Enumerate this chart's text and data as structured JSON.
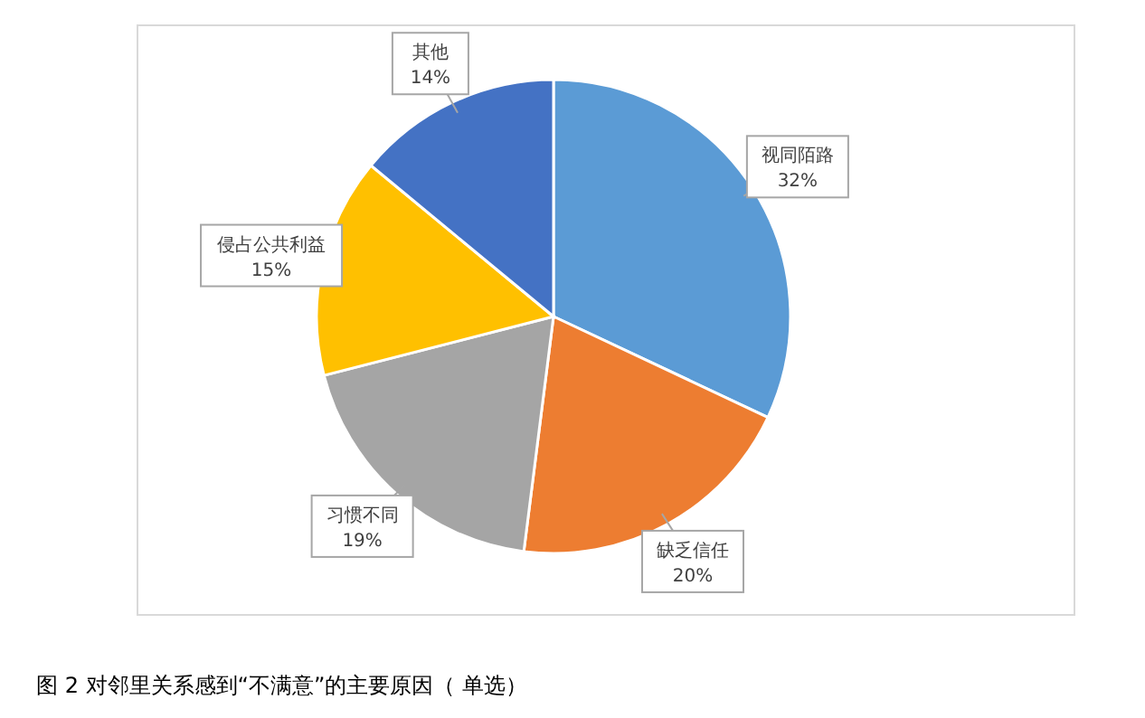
{
  "chart_data": {
    "type": "pie",
    "title": "图 2 对邻里关系感到“不满意”的主要原因（ 单选）",
    "categories": [
      "视同陌路",
      "缺乏信任",
      "习惯不同",
      "侵占公共利益",
      "其他"
    ],
    "values": [
      32,
      20,
      19,
      15,
      14
    ],
    "value_labels": [
      "32%",
      "20%",
      "19%",
      "15%",
      "14%"
    ],
    "colors": [
      "#5b9bd5",
      "#ed7d31",
      "#a5a5a5",
      "#ffc000",
      "#4472c4"
    ]
  }
}
